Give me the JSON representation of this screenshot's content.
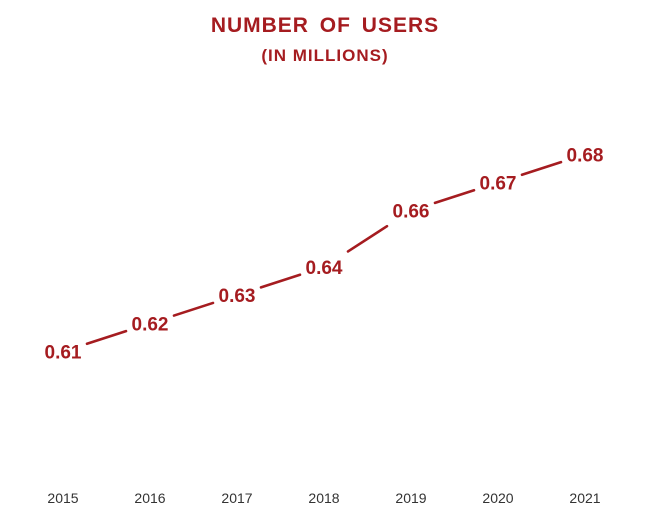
{
  "chart_data": {
    "type": "line",
    "title": "NUMBER  OF USERS",
    "subtitle": "(IN MILLIONS)",
    "categories": [
      "2015",
      "2016",
      "2017",
      "2018",
      "2019",
      "2020",
      "2021"
    ],
    "values": [
      0.61,
      0.62,
      0.63,
      0.64,
      0.66,
      0.67,
      0.68
    ],
    "value_labels": [
      "0.61",
      "0.62",
      "0.63",
      "0.64",
      "0.66",
      "0.67",
      "0.68"
    ],
    "xlabel": "",
    "ylabel": "",
    "ylim": [
      0.58,
      0.7
    ],
    "grid": false,
    "legend": "none",
    "colors": {
      "line": "#a51c20",
      "label": "#a51c20",
      "drop_line": "#555555",
      "axis_text": "#333333"
    }
  }
}
